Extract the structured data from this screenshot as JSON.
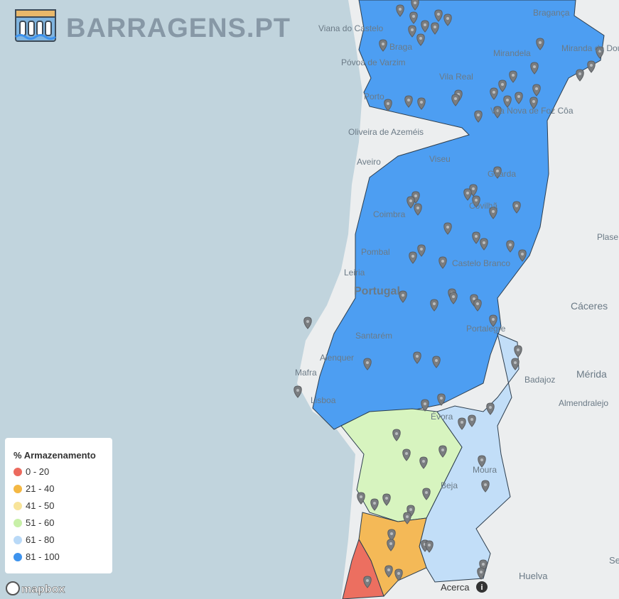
{
  "header": {
    "title": "BARRAGENS.PT"
  },
  "legend": {
    "title": "% Armazenamento",
    "items": [
      {
        "label": "0 - 20",
        "color": "#ec6a5e"
      },
      {
        "label": "21 - 40",
        "color": "#f4b844"
      },
      {
        "label": "41 - 50",
        "color": "#f8e49a"
      },
      {
        "label": "51 - 60",
        "color": "#c8f0a8"
      },
      {
        "label": "61 - 80",
        "color": "#b9d9f7"
      },
      {
        "label": "81 - 100",
        "color": "#3d93ee"
      }
    ]
  },
  "map": {
    "places": [
      "Viana do Castelo",
      "Braga",
      "Bragança",
      "Mirandela",
      "Miranda do Douro",
      "Póvoa de Varzim",
      "Vila Real",
      "Vila Nova de Foz Côa",
      "Porto",
      "Oliveira de Azeméis",
      "Aveiro",
      "Viseu",
      "Guarda",
      "Coimbra",
      "Covilhã",
      "Pombal",
      "Castelo Branco",
      "Leiria",
      "Portugal",
      "Plase",
      "Cáceres",
      "Portalegre",
      "Santarém",
      "Alenquer",
      "Mafra",
      "Mérida",
      "Badajoz",
      "Lisboa",
      "Almendralejo",
      "Évora",
      "Moura",
      "Beja",
      "Huelva",
      "Se"
    ]
  },
  "footer": {
    "attribution": "mapbox",
    "about": "Acerca"
  }
}
